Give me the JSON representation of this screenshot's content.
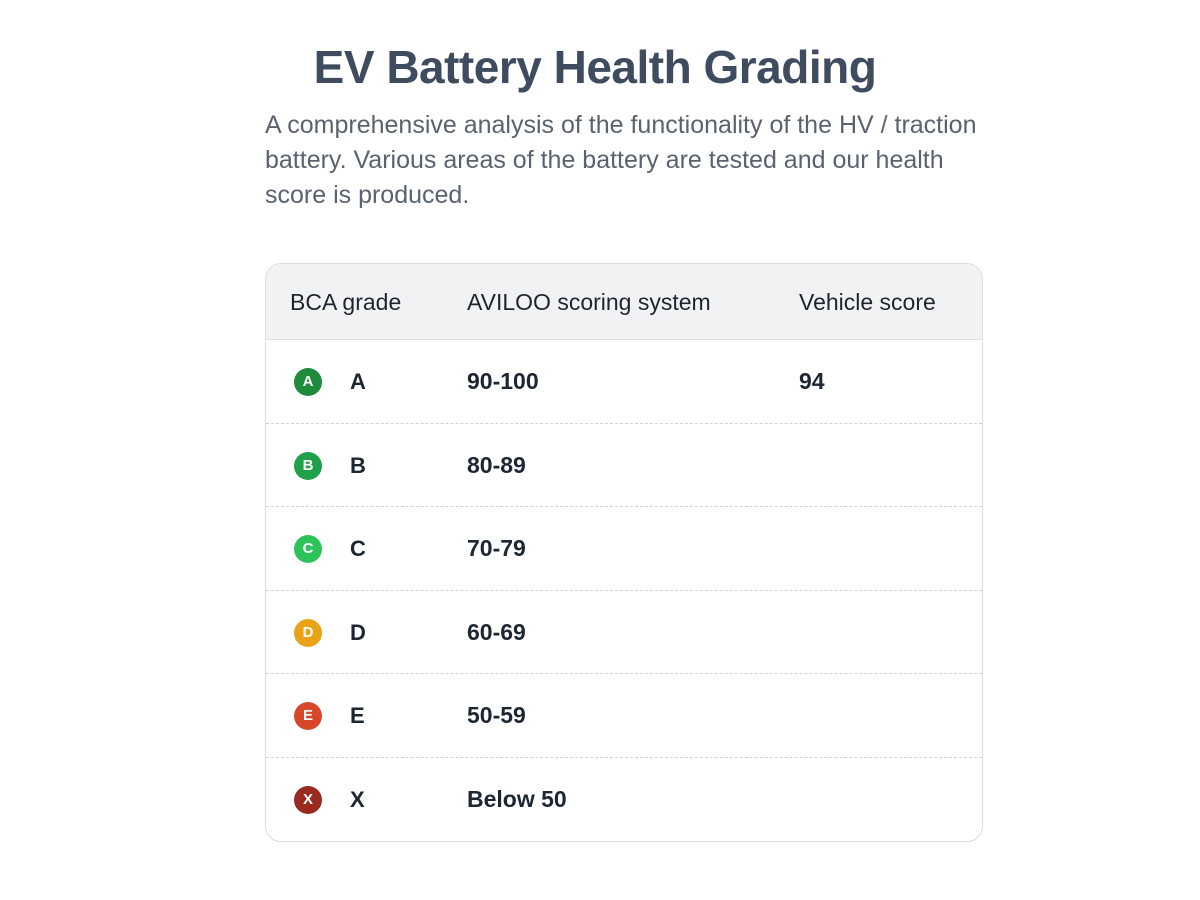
{
  "header": {
    "title": "EV Battery Health Grading",
    "description": "A comprehensive analysis of the functionality of the HV / traction battery. Various areas of the battery are tested and our health score is produced."
  },
  "table": {
    "columns": [
      "BCA grade",
      "AVILOO scoring system",
      "Vehicle score"
    ],
    "rows": [
      {
        "badge": "A",
        "grade": "A",
        "range": "90-100",
        "score": "94",
        "color": "#1e8a3c"
      },
      {
        "badge": "B",
        "grade": "B",
        "range": "80-89",
        "score": "",
        "color": "#20a04a"
      },
      {
        "badge": "C",
        "grade": "C",
        "range": "70-79",
        "score": "",
        "color": "#2ec35a"
      },
      {
        "badge": "D",
        "grade": "D",
        "range": "60-69",
        "score": "",
        "color": "#e8a317"
      },
      {
        "badge": "E",
        "grade": "E",
        "range": "50-59",
        "score": "",
        "color": "#d9472b"
      },
      {
        "badge": "X",
        "grade": "X",
        "range": "Below 50",
        "score": "",
        "color": "#9a2a1f"
      }
    ]
  }
}
